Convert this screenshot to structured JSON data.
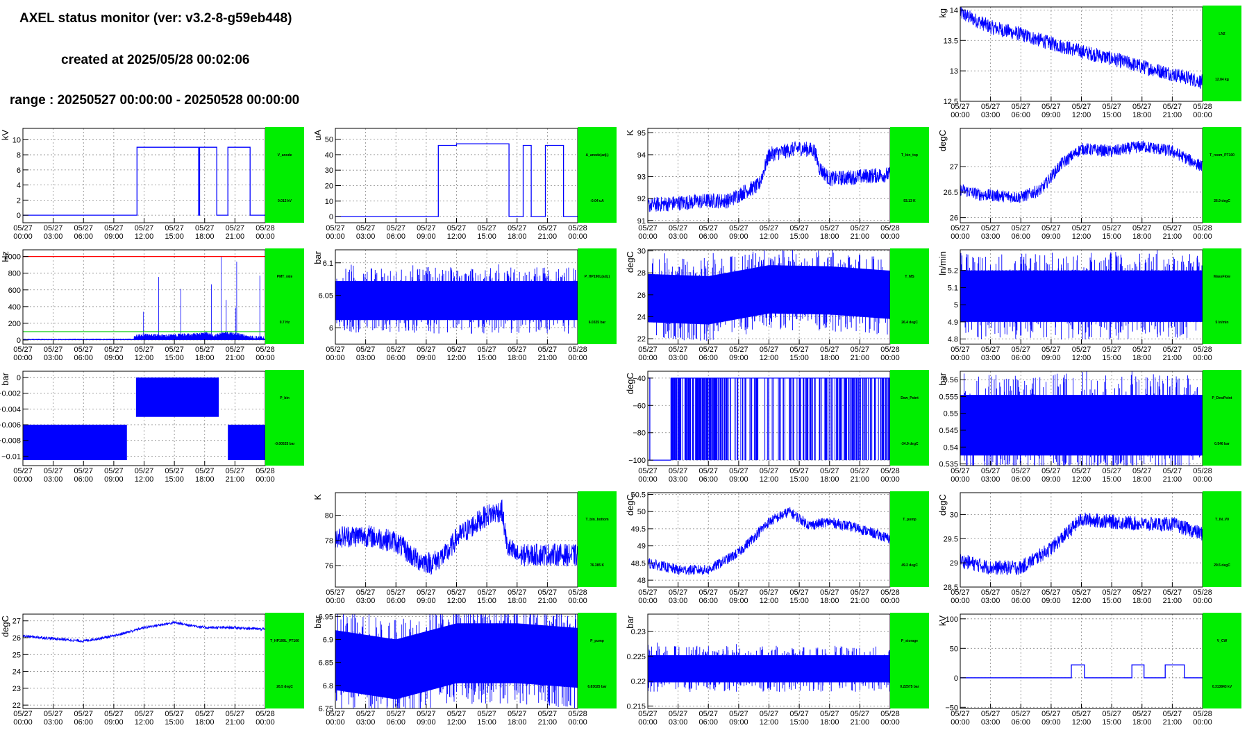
{
  "header": {
    "title": "AXEL status monitor (ver: v3.2-8-g59eb448)",
    "created": "created at 2025/05/28 00:02:06",
    "range": "range : 20250527 00:00:00 - 20250528 00:00:00"
  },
  "x_ticks": [
    "05/27\n00:00",
    "05/27\n03:00",
    "05/27\n06:00",
    "05/27\n09:00",
    "05/27\n12:00",
    "05/27\n15:00",
    "05/27\n18:00",
    "05/27\n21:00",
    "05/28\n00:00"
  ],
  "chart_data": [
    {
      "id": "LN2",
      "type": "line",
      "col": 3,
      "row": 0,
      "name": "LN2",
      "value_label": "12.84 kg",
      "ylabel": "kg",
      "ylim": [
        12.5,
        14.05
      ],
      "yticks": [
        12.5,
        13,
        13.5,
        14
      ],
      "ytick_labels": [
        "12.5",
        "13",
        "13.5",
        "14"
      ],
      "pattern": "noise",
      "x": [
        0,
        3,
        6,
        9,
        12,
        15,
        18,
        21,
        24
      ],
      "y": [
        13.95,
        13.72,
        13.6,
        13.45,
        13.32,
        13.2,
        13.07,
        12.95,
        12.82
      ],
      "noise": 0.12,
      "color": "#0000ff",
      "grid": true
    },
    {
      "id": "V_anode",
      "type": "line",
      "col": 0,
      "row": 1,
      "name": "V_anode",
      "value_label": "0.012 kV",
      "ylabel": "kV",
      "ylim": [
        -1,
        11.5
      ],
      "yticks": [
        0,
        2,
        4,
        6,
        8,
        10
      ],
      "ytick_labels": [
        "0",
        "2",
        "4",
        "6",
        "8",
        "10"
      ],
      "pattern": "line",
      "x": [
        0,
        11.3,
        11.3,
        17.4,
        17.4,
        17.5,
        17.5,
        19.2,
        19.2,
        20.3,
        20.3,
        22.5,
        22.5,
        24
      ],
      "y": [
        0,
        0,
        9,
        9,
        0,
        0,
        9,
        9,
        0,
        0,
        9,
        9,
        0,
        0
      ],
      "color": "#0000ff",
      "grid": true
    },
    {
      "id": "A_anode",
      "type": "line",
      "col": 1,
      "row": 1,
      "name": "A_anode(adj.)",
      "value_label": "-0.04 uA",
      "ylabel": "uA",
      "ylim": [
        -4,
        57
      ],
      "yticks": [
        0,
        10,
        20,
        30,
        40,
        50
      ],
      "ytick_labels": [
        "0",
        "10",
        "20",
        "30",
        "40",
        "50"
      ],
      "pattern": "line",
      "x": [
        0,
        10.2,
        10.2,
        12,
        12,
        17.2,
        17.2,
        18.6,
        18.6,
        19.4,
        19.4,
        20.8,
        20.8,
        22.6,
        22.6,
        24
      ],
      "y": [
        0,
        0,
        46,
        46,
        47,
        47,
        0,
        0,
        46,
        46,
        0,
        0,
        46,
        46,
        0,
        0
      ],
      "color": "#0000ff",
      "grid": true
    },
    {
      "id": "T_bin_top",
      "type": "line",
      "col": 2,
      "row": 1,
      "name": "T_bin_top",
      "value_label": "93.13 K",
      "ylabel": "K",
      "ylim": [
        90.9,
        95.2
      ],
      "yticks": [
        91,
        92,
        93,
        94,
        95
      ],
      "ytick_labels": [
        "91",
        "92",
        "93",
        "94",
        "95"
      ],
      "pattern": "noise",
      "x": [
        0,
        3,
        6,
        8,
        9.5,
        11,
        12,
        15,
        16.5,
        17,
        18,
        21,
        24
      ],
      "y": [
        91.7,
        91.8,
        91.9,
        91.9,
        92.3,
        92.6,
        94,
        94.3,
        94.2,
        93.4,
        92.9,
        93,
        93.1
      ],
      "noise": 0.35,
      "color": "#0000ff",
      "grid": true
    },
    {
      "id": "T_room_PT100",
      "type": "line",
      "col": 3,
      "row": 1,
      "name": "T_room_PT100",
      "value_label": "26.9 degC",
      "ylabel": "degC",
      "ylim": [
        25.9,
        27.75
      ],
      "yticks": [
        26,
        26.5,
        27
      ],
      "ytick_labels": [
        "26",
        "26.5",
        "27"
      ],
      "pattern": "noise",
      "x": [
        0,
        2,
        6,
        8,
        10,
        12,
        15,
        18,
        21,
        24
      ],
      "y": [
        26.55,
        26.45,
        26.4,
        26.55,
        27.05,
        27.35,
        27.3,
        27.4,
        27.3,
        27.0
      ],
      "noise": 0.12,
      "color": "#0000ff",
      "grid": true
    },
    {
      "id": "PMT_rate",
      "type": "line",
      "col": 0,
      "row": 2,
      "name": "PMT_rate",
      "value_label": "0.7 Hz",
      "ylabel": "Hz",
      "ylim": [
        -50,
        1080
      ],
      "yticks": [
        0,
        200,
        400,
        600,
        800,
        1000
      ],
      "ytick_labels": [
        "0",
        "200",
        "400",
        "600",
        "800",
        "1000"
      ],
      "pattern": "spikes",
      "x": [
        0,
        11,
        11.5,
        14,
        17,
        18,
        19,
        20.2,
        22.5,
        24
      ],
      "y": [
        5,
        8,
        40,
        30,
        45,
        60,
        30,
        70,
        15,
        5
      ],
      "noise": 40,
      "color": "#0000ff",
      "grid": true,
      "hlines": [
        {
          "value": 1000,
          "color": "#ff0000"
        },
        {
          "value": 100,
          "color": "#00cc00"
        }
      ]
    },
    {
      "id": "P_HP190L",
      "type": "line",
      "col": 1,
      "row": 2,
      "name": "P_HP190L(adj.)",
      "value_label": "6.0325 bar",
      "ylabel": "bar",
      "ylim": [
        5.975,
        6.12
      ],
      "yticks": [
        6,
        6.05,
        6.1
      ],
      "ytick_labels": [
        "6",
        "6.05",
        "6.1"
      ],
      "pattern": "band",
      "x": [
        0,
        11.5,
        11.5,
        24
      ],
      "y": [
        6.05,
        6.05,
        6.05,
        6.05
      ],
      "band": [
        6.012,
        6.072
      ],
      "color": "#0000ff",
      "grid": true
    },
    {
      "id": "T_MS",
      "type": "line",
      "col": 2,
      "row": 2,
      "name": "T_MS",
      "value_label": "26.4 degC",
      "ylabel": "degC",
      "ylim": [
        21.5,
        30.1
      ],
      "yticks": [
        22,
        24,
        26,
        28,
        30
      ],
      "ytick_labels": [
        "22",
        "24",
        "26",
        "28",
        "30"
      ],
      "pattern": "band",
      "x": [
        0,
        6,
        12,
        18,
        24
      ],
      "y": [
        25.7,
        25.5,
        26.5,
        26.4,
        26.0
      ],
      "band": [
        -2.2,
        2.2
      ],
      "color": "#0000ff",
      "grid": true
    },
    {
      "id": "MassFlow",
      "type": "line",
      "col": 3,
      "row": 2,
      "name": "MassFlow",
      "value_label": "5 ln/min",
      "ylabel": "ln/min",
      "ylim": [
        4.77,
        5.32
      ],
      "yticks": [
        4.8,
        4.9,
        5,
        5.1,
        5.2
      ],
      "ytick_labels": [
        "4.8",
        "4.9",
        "5",
        "5.1",
        "5.2"
      ],
      "pattern": "band",
      "x": [
        0,
        24
      ],
      "y": [
        5.05,
        5.05
      ],
      "band": [
        -0.15,
        0.15
      ],
      "color": "#0000ff",
      "grid": true
    },
    {
      "id": "P_bin",
      "type": "line",
      "col": 0,
      "row": 3,
      "name": "P_bin",
      "value_label": "-0.00525 bar",
      "ylabel": "bar",
      "ylim": [
        -0.0112,
        0.0008
      ],
      "yticks": [
        -0.01,
        -0.008,
        -0.006,
        -0.004,
        -0.002,
        0
      ],
      "ytick_labels": [
        "−0.01",
        "−0.008",
        "−0.006",
        "−0.004",
        "−0.002",
        "0"
      ],
      "pattern": "blocks",
      "blocks": [
        {
          "x0": 0,
          "x1": 10.3,
          "y0": -0.0105,
          "y1": -0.006
        },
        {
          "x0": 11.2,
          "x1": 19.4,
          "y0": -0.005,
          "y1": 0.0
        },
        {
          "x0": 20.3,
          "x1": 24,
          "y0": -0.0105,
          "y1": -0.006
        }
      ],
      "color": "#0000ff",
      "grid": true
    },
    {
      "id": "Dew_Point",
      "type": "line",
      "col": 2,
      "row": 3,
      "name": "Dew_Point",
      "value_label": "-34.9 degC",
      "ylabel": "degC",
      "ylim": [
        -104,
        -35
      ],
      "yticks": [
        -100,
        -80,
        -60,
        -40
      ],
      "ytick_labels": [
        "−100",
        "−80",
        "−60",
        "−40"
      ],
      "pattern": "dew",
      "x": [
        0,
        1,
        2.3,
        24
      ],
      "y": [
        -40,
        -100,
        -40,
        -40
      ],
      "color": "#0000ff",
      "grid": true
    },
    {
      "id": "P_DewPoint",
      "type": "line",
      "col": 3,
      "row": 3,
      "name": "P_DewPoint",
      "value_label": "0.546 bar",
      "ylabel": "bar",
      "ylim": [
        0.5345,
        0.5625
      ],
      "yticks": [
        0.535,
        0.54,
        0.545,
        0.55,
        0.555,
        0.56
      ],
      "ytick_labels": [
        "0.535",
        "0.54",
        "0.545",
        "0.55",
        "0.555",
        "0.56"
      ],
      "pattern": "band",
      "x": [
        0,
        24
      ],
      "y": [
        0.546,
        0.546
      ],
      "band": [
        -0.0085,
        0.0095
      ],
      "color": "#0000ff",
      "grid": true
    },
    {
      "id": "T_bin_bottom",
      "type": "line",
      "col": 1,
      "row": 4,
      "name": "T_bin_bottom",
      "value_label": "76.385 K",
      "ylabel": "K",
      "ylim": [
        74.3,
        81.8
      ],
      "yticks": [
        76,
        78,
        80
      ],
      "ytick_labels": [
        "76",
        "78",
        "80"
      ],
      "pattern": "noise",
      "x": [
        0,
        3,
        6,
        8,
        9.5,
        11,
        12,
        15,
        16.5,
        17,
        18,
        21,
        24
      ],
      "y": [
        78.3,
        78.4,
        77.9,
        76.5,
        76.2,
        76.9,
        78.2,
        80.0,
        80.4,
        77.5,
        76.8,
        76.9,
        76.8
      ],
      "noise": 0.9,
      "color": "#0000ff",
      "grid": true
    },
    {
      "id": "T_pump",
      "type": "line",
      "col": 2,
      "row": 4,
      "name": "T_pump",
      "value_label": "49.2 degC",
      "ylabel": "degC",
      "ylim": [
        47.8,
        50.55
      ],
      "yticks": [
        48,
        48.5,
        49,
        49.5,
        50,
        50.5
      ],
      "ytick_labels": [
        "48",
        "48.5",
        "49",
        "49.5",
        "50",
        "50.5"
      ],
      "pattern": "noise",
      "x": [
        0,
        3,
        6,
        9,
        12,
        14,
        16,
        18,
        21,
        24
      ],
      "y": [
        48.5,
        48.3,
        48.3,
        48.8,
        49.7,
        50.0,
        49.6,
        49.7,
        49.5,
        49.2
      ],
      "noise": 0.15,
      "color": "#0000ff",
      "grid": true
    },
    {
      "id": "T_IN_V0",
      "type": "line",
      "col": 3,
      "row": 4,
      "name": "T_IN_V0",
      "value_label": "29.5 degC",
      "ylabel": "degC",
      "ylim": [
        28.5,
        30.45
      ],
      "yticks": [
        28.5,
        29,
        29.5,
        30
      ],
      "ytick_labels": [
        "28.5",
        "29",
        "29.5",
        "30"
      ],
      "pattern": "noise",
      "x": [
        0,
        3,
        6,
        9,
        12,
        15,
        18,
        21,
        24
      ],
      "y": [
        29.05,
        28.9,
        28.9,
        29.3,
        29.9,
        29.85,
        29.8,
        29.8,
        29.6
      ],
      "noise": 0.15,
      "color": "#0000ff",
      "grid": true
    },
    {
      "id": "T_HP190L_PT100",
      "type": "line",
      "col": 0,
      "row": 5,
      "name": "T_HP190L_PT100",
      "value_label": "26.5 degC",
      "ylabel": "degC",
      "ylim": [
        21.8,
        27.4
      ],
      "yticks": [
        22,
        23,
        24,
        25,
        26,
        27
      ],
      "ytick_labels": [
        "22",
        "23",
        "24",
        "25",
        "26",
        "27"
      ],
      "pattern": "noise",
      "x": [
        0,
        3,
        6,
        9,
        12,
        15,
        18,
        21,
        24
      ],
      "y": [
        26.1,
        25.95,
        25.8,
        26.1,
        26.6,
        26.9,
        26.6,
        26.6,
        26.5
      ],
      "noise": 0.08,
      "color": "#0000ff",
      "grid": true
    },
    {
      "id": "P_pump",
      "type": "line",
      "col": 1,
      "row": 5,
      "name": "P_pump",
      "value_label": "6.83025 bar",
      "ylabel": "bar",
      "ylim": [
        6.75,
        6.955
      ],
      "yticks": [
        6.75,
        6.8,
        6.85,
        6.9,
        6.95
      ],
      "ytick_labels": [
        "6.75",
        "6.8",
        "6.85",
        "6.9",
        "6.95"
      ],
      "pattern": "band",
      "x": [
        0,
        6,
        12,
        18,
        24
      ],
      "y": [
        6.855,
        6.835,
        6.87,
        6.87,
        6.86
      ],
      "band": [
        -0.065,
        0.065
      ],
      "color": "#0000ff",
      "grid": true
    },
    {
      "id": "P_storage",
      "type": "line",
      "col": 2,
      "row": 5,
      "name": "P_storage",
      "value_label": "0.22575 bar",
      "ylabel": "bar",
      "ylim": [
        0.2145,
        0.2335
      ],
      "yticks": [
        0.215,
        0.22,
        0.225,
        0.23
      ],
      "ytick_labels": [
        "0.215",
        "0.22",
        "0.225",
        "0.23"
      ],
      "pattern": "band",
      "x": [
        0,
        24
      ],
      "y": [
        0.2225,
        0.2225
      ],
      "band": [
        -0.00275,
        0.00275
      ],
      "color": "#0000ff",
      "grid": true
    },
    {
      "id": "V_CW",
      "type": "line",
      "col": 3,
      "row": 5,
      "name": "V_CW",
      "value_label": "0.313843 kV",
      "ylabel": "kV",
      "ylim": [
        -52,
        108
      ],
      "yticks": [
        -50,
        0,
        50,
        100
      ],
      "ytick_labels": [
        "−50",
        "0",
        "50",
        "100"
      ],
      "pattern": "line",
      "x": [
        0,
        11,
        11,
        12.3,
        12.3,
        17,
        17,
        18.2,
        18.2,
        20.3,
        20.3,
        22.2,
        22.2,
        24
      ],
      "y": [
        0,
        0,
        22,
        22,
        0,
        0,
        22,
        22,
        0,
        0,
        22,
        22,
        0,
        0
      ],
      "color": "#0000ff",
      "grid": true
    }
  ]
}
